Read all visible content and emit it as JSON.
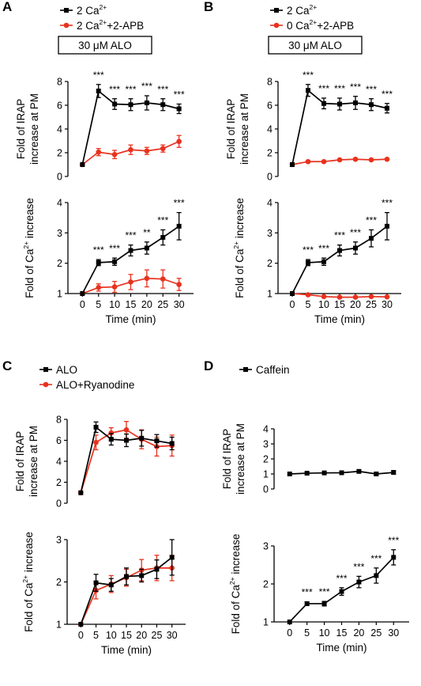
{
  "panels": [
    {
      "id": "A",
      "label": "A",
      "legend": [
        {
          "name": "2 Ca",
          "sup": "2+",
          "suffix": "",
          "color": "#000000",
          "marker": "square"
        },
        {
          "name": "2 Ca",
          "sup": "2+",
          "suffix": "+2-APB",
          "color": "#e8321e",
          "marker": "circle"
        }
      ],
      "condition_box": "30 μM ALO",
      "xlabel": "Time (min)"
    },
    {
      "id": "B",
      "label": "B",
      "legend": [
        {
          "name": "2 Ca",
          "sup": "2+",
          "suffix": "",
          "color": "#000000",
          "marker": "square"
        },
        {
          "name": "0 Ca",
          "sup": "2+",
          "suffix": "+2-APB",
          "color": "#e8321e",
          "marker": "circle"
        }
      ],
      "condition_box": "30 μM ALO",
      "xlabel": "Time (min)"
    },
    {
      "id": "C",
      "label": "C",
      "legend": [
        {
          "name": "ALO",
          "sup": "",
          "suffix": "",
          "color": "#000000",
          "marker": "square"
        },
        {
          "name": "ALO+Ryanodine",
          "sup": "",
          "suffix": "",
          "color": "#e8321e",
          "marker": "circle"
        }
      ],
      "condition_box": "",
      "xlabel": "Time (min)"
    },
    {
      "id": "D",
      "label": "D",
      "legend": [
        {
          "name": "Caffein",
          "sup": "",
          "suffix": "",
          "color": "#000000",
          "marker": "square"
        }
      ],
      "condition_box": "",
      "xlabel": "Time (min)"
    }
  ],
  "chart_data": [
    {
      "panel": "A",
      "position": "top",
      "type": "line",
      "ylabel_lines": [
        "Fold of IRAP",
        "increase at PM"
      ],
      "ylabel_sup": "",
      "ylim": [
        0,
        8
      ],
      "yticks": [
        0,
        2,
        4,
        6,
        8
      ],
      "x": [
        0,
        5,
        10,
        15,
        20,
        25,
        30
      ],
      "show_xticks": false,
      "series": [
        {
          "color": "#000000",
          "marker": "square",
          "values": [
            1.0,
            7.2,
            6.1,
            6.05,
            6.2,
            6.05,
            5.7
          ],
          "errors": [
            0,
            0.55,
            0.45,
            0.5,
            0.6,
            0.5,
            0.4
          ]
        },
        {
          "color": "#e8321e",
          "marker": "circle",
          "values": [
            1.0,
            2.05,
            1.85,
            2.25,
            2.15,
            2.35,
            2.95
          ],
          "errors": [
            0,
            0.3,
            0.35,
            0.4,
            0.3,
            0.3,
            0.5
          ]
        }
      ],
      "significance": [
        "",
        "***",
        "***",
        "***",
        "***",
        "***",
        "***"
      ]
    },
    {
      "panel": "A",
      "position": "bottom",
      "type": "line",
      "ylabel_lines": [
        "Fold of Ca increase"
      ],
      "ylabel_sup": "2+",
      "ylim": [
        1,
        4
      ],
      "yticks": [
        1,
        2,
        3,
        4
      ],
      "x": [
        0,
        5,
        10,
        15,
        20,
        25,
        30
      ],
      "show_xticks": true,
      "series": [
        {
          "color": "#000000",
          "marker": "square",
          "values": [
            1.0,
            2.02,
            2.05,
            2.42,
            2.5,
            2.85,
            3.22
          ],
          "errors": [
            0,
            0.1,
            0.12,
            0.18,
            0.2,
            0.25,
            0.45
          ]
        },
        {
          "color": "#e8321e",
          "marker": "circle",
          "values": [
            1.0,
            1.2,
            1.22,
            1.38,
            1.5,
            1.48,
            1.3
          ],
          "errors": [
            0,
            0.12,
            0.18,
            0.25,
            0.28,
            0.3,
            0.2
          ]
        }
      ],
      "significance": [
        "",
        "***",
        "***",
        "***",
        "**",
        "***",
        "***"
      ]
    },
    {
      "panel": "B",
      "position": "top",
      "type": "line",
      "ylabel_lines": [
        "Fold of IRAP",
        "increase at PM"
      ],
      "ylabel_sup": "",
      "ylim": [
        0,
        8
      ],
      "yticks": [
        0,
        2,
        4,
        6,
        8
      ],
      "x": [
        0,
        5,
        10,
        15,
        20,
        25,
        30
      ],
      "show_xticks": false,
      "series": [
        {
          "color": "#000000",
          "marker": "square",
          "values": [
            1.0,
            7.25,
            6.15,
            6.1,
            6.2,
            6.05,
            5.75
          ],
          "errors": [
            0,
            0.5,
            0.45,
            0.5,
            0.55,
            0.5,
            0.4
          ]
        },
        {
          "color": "#e8321e",
          "marker": "circle",
          "values": [
            1.0,
            1.25,
            1.25,
            1.4,
            1.45,
            1.4,
            1.45
          ],
          "errors": [
            0,
            0.08,
            0.05,
            0.05,
            0.05,
            0.05,
            0.05
          ]
        }
      ],
      "significance": [
        "",
        "***",
        "***",
        "***",
        "***",
        "***",
        "***"
      ]
    },
    {
      "panel": "B",
      "position": "bottom",
      "type": "line",
      "ylabel_lines": [
        "Fold of Ca increase"
      ],
      "ylabel_sup": "2+",
      "ylim": [
        1,
        4
      ],
      "yticks": [
        1,
        2,
        3,
        4
      ],
      "x": [
        0,
        5,
        10,
        15,
        20,
        25,
        30
      ],
      "show_xticks": true,
      "series": [
        {
          "color": "#000000",
          "marker": "square",
          "values": [
            1.0,
            2.02,
            2.05,
            2.42,
            2.5,
            2.82,
            3.22
          ],
          "errors": [
            0,
            0.1,
            0.12,
            0.18,
            0.2,
            0.28,
            0.45
          ]
        },
        {
          "color": "#e8321e",
          "marker": "circle",
          "values": [
            1.0,
            0.96,
            0.9,
            0.88,
            0.88,
            0.9,
            0.89
          ],
          "errors": [
            0,
            0.03,
            0.02,
            0.02,
            0.02,
            0.02,
            0.02
          ]
        }
      ],
      "significance": [
        "",
        "***",
        "***",
        "***",
        "***",
        "***",
        "***"
      ]
    },
    {
      "panel": "C",
      "position": "top",
      "type": "line",
      "ylabel_lines": [
        "Fold of IRAP",
        "increase at PM"
      ],
      "ylabel_sup": "",
      "ylim": [
        0,
        8
      ],
      "yticks": [
        0,
        2,
        4,
        6,
        8
      ],
      "x": [
        0,
        5,
        10,
        15,
        20,
        25,
        30
      ],
      "show_xticks": false,
      "series": [
        {
          "color": "#000000",
          "marker": "square",
          "values": [
            1.0,
            7.25,
            6.1,
            6.0,
            6.2,
            5.95,
            5.7
          ],
          "errors": [
            0,
            0.5,
            0.55,
            0.6,
            0.75,
            0.6,
            0.6
          ]
        },
        {
          "color": "#e8321e",
          "marker": "circle",
          "values": [
            1.0,
            5.8,
            6.7,
            7.0,
            6.1,
            5.4,
            5.5
          ],
          "errors": [
            0,
            0.7,
            0.5,
            0.8,
            0.9,
            0.9,
            1.0
          ]
        }
      ],
      "significance": []
    },
    {
      "panel": "C",
      "position": "bottom",
      "type": "line",
      "ylabel_lines": [
        "Fold of Ca increase"
      ],
      "ylabel_sup": "2+",
      "ylim": [
        1,
        3
      ],
      "yticks": [
        1,
        2,
        3
      ],
      "x": [
        0,
        5,
        10,
        15,
        20,
        25,
        30
      ],
      "show_xticks": true,
      "series": [
        {
          "color": "#000000",
          "marker": "square",
          "values": [
            1.0,
            1.98,
            1.93,
            2.13,
            2.15,
            2.3,
            2.58
          ],
          "errors": [
            0,
            0.2,
            0.15,
            0.2,
            0.15,
            0.22,
            0.42
          ]
        },
        {
          "color": "#e8321e",
          "marker": "circle",
          "values": [
            1.0,
            1.8,
            1.95,
            2.1,
            2.28,
            2.33,
            2.33
          ],
          "errors": [
            0,
            0.2,
            0.2,
            0.2,
            0.25,
            0.3,
            0.3
          ]
        }
      ],
      "significance": []
    },
    {
      "panel": "D",
      "position": "top",
      "type": "line",
      "ylabel_lines": [
        "Fold of IRAP",
        "increase at PM"
      ],
      "ylabel_sup": "",
      "ylim": [
        0,
        4
      ],
      "yticks": [
        0,
        1,
        2,
        3,
        4
      ],
      "x": [
        0,
        5,
        10,
        15,
        20,
        25,
        30
      ],
      "show_xticks": false,
      "series": [
        {
          "color": "#000000",
          "marker": "square",
          "values": [
            1.0,
            1.05,
            1.07,
            1.08,
            1.17,
            1.0,
            1.1
          ],
          "errors": [
            0,
            0.05,
            0.05,
            0.05,
            0.08,
            0.08,
            0.12
          ]
        }
      ],
      "significance": []
    },
    {
      "panel": "D",
      "position": "bottom",
      "type": "line",
      "ylabel_lines": [
        "Fold of Ca increase"
      ],
      "ylabel_sup": "2+",
      "ylim": [
        1,
        3
      ],
      "yticks": [
        1,
        2,
        3
      ],
      "x": [
        0,
        5,
        10,
        15,
        20,
        25,
        30
      ],
      "show_xticks": true,
      "series": [
        {
          "color": "#000000",
          "marker": "square",
          "values": [
            1.0,
            1.48,
            1.48,
            1.8,
            2.05,
            2.22,
            2.7
          ],
          "errors": [
            0,
            0.05,
            0.06,
            0.1,
            0.15,
            0.2,
            0.2
          ]
        }
      ],
      "significance": [
        "",
        "***",
        "***",
        "***",
        "***",
        "***",
        "***"
      ]
    }
  ]
}
